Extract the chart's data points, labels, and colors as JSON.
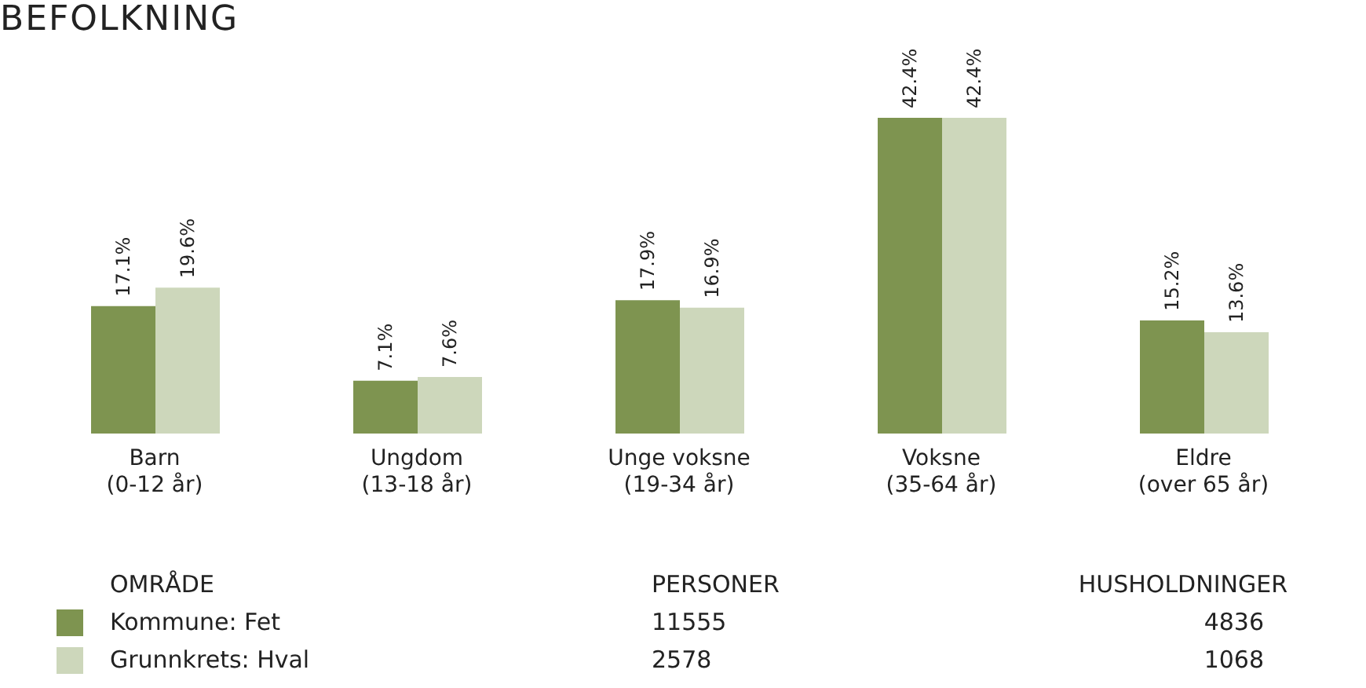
{
  "chart_data": {
    "type": "bar",
    "title": "BEFOLKNING",
    "categories": [
      "Barn\n(0-12 år)",
      "Ungdom\n(13-18 år)",
      "Unge voksne\n(19-34 år)",
      "Voksne\n(35-64 år)",
      "Eldre\n(over 65 år)"
    ],
    "series": [
      {
        "name": "Kommune: Fet",
        "color": "#7e9450",
        "values": [
          17.1,
          7.1,
          17.9,
          42.4,
          15.2
        ],
        "value_labels": [
          "17.1%",
          "7.1%",
          "17.9%",
          "42.4%",
          "15.2%"
        ]
      },
      {
        "name": "Grunnkrets: Hval",
        "color": "#cdd7bb",
        "values": [
          19.6,
          7.6,
          16.9,
          42.4,
          13.6
        ],
        "value_labels": [
          "19.6%",
          "7.6%",
          "16.9%",
          "42.4%",
          "13.6%"
        ]
      }
    ],
    "legend": "bottom",
    "legend_title": "OMRÅDE",
    "annotations": [
      "PERSONER",
      "11555",
      "2578",
      "HUSHOLDNINGER",
      "4836",
      "1068"
    ]
  }
}
